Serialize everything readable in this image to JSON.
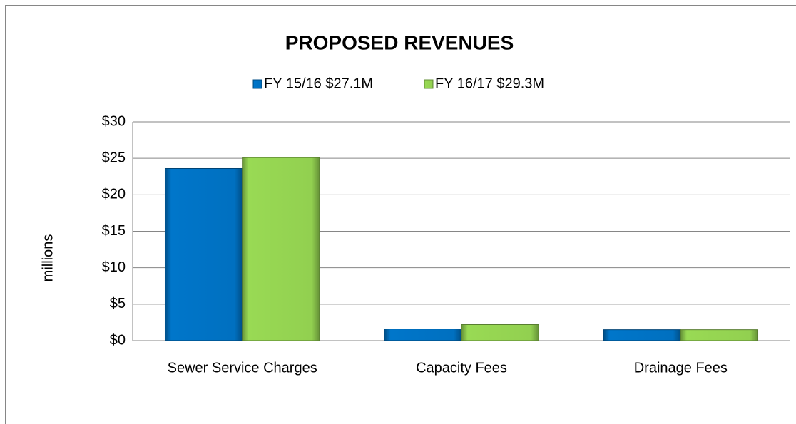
{
  "chart_data": {
    "type": "bar",
    "title": "PROPOSED REVENUES",
    "y_label": "millions",
    "categories": [
      "Sewer Service Charges",
      "Capacity Fees",
      "Drainage Fees"
    ],
    "series": [
      {
        "name": "FY 15/16 $27.1M",
        "color": "#0070c0",
        "values": [
          23.6,
          1.6,
          1.5
        ]
      },
      {
        "name": "FY 16/17 $29.3M",
        "color": "#92d050",
        "values": [
          25.1,
          2.2,
          1.5
        ]
      }
    ],
    "ylim": [
      0,
      30
    ],
    "yticks": [
      {
        "value": 0,
        "label": "$0"
      },
      {
        "value": 5,
        "label": "$5"
      },
      {
        "value": 10,
        "label": "$10"
      },
      {
        "value": 15,
        "label": "$15"
      },
      {
        "value": 20,
        "label": "$20"
      },
      {
        "value": 25,
        "label": "$25"
      },
      {
        "value": 30,
        "label": "$30"
      }
    ],
    "grid": true,
    "legend": "top"
  }
}
